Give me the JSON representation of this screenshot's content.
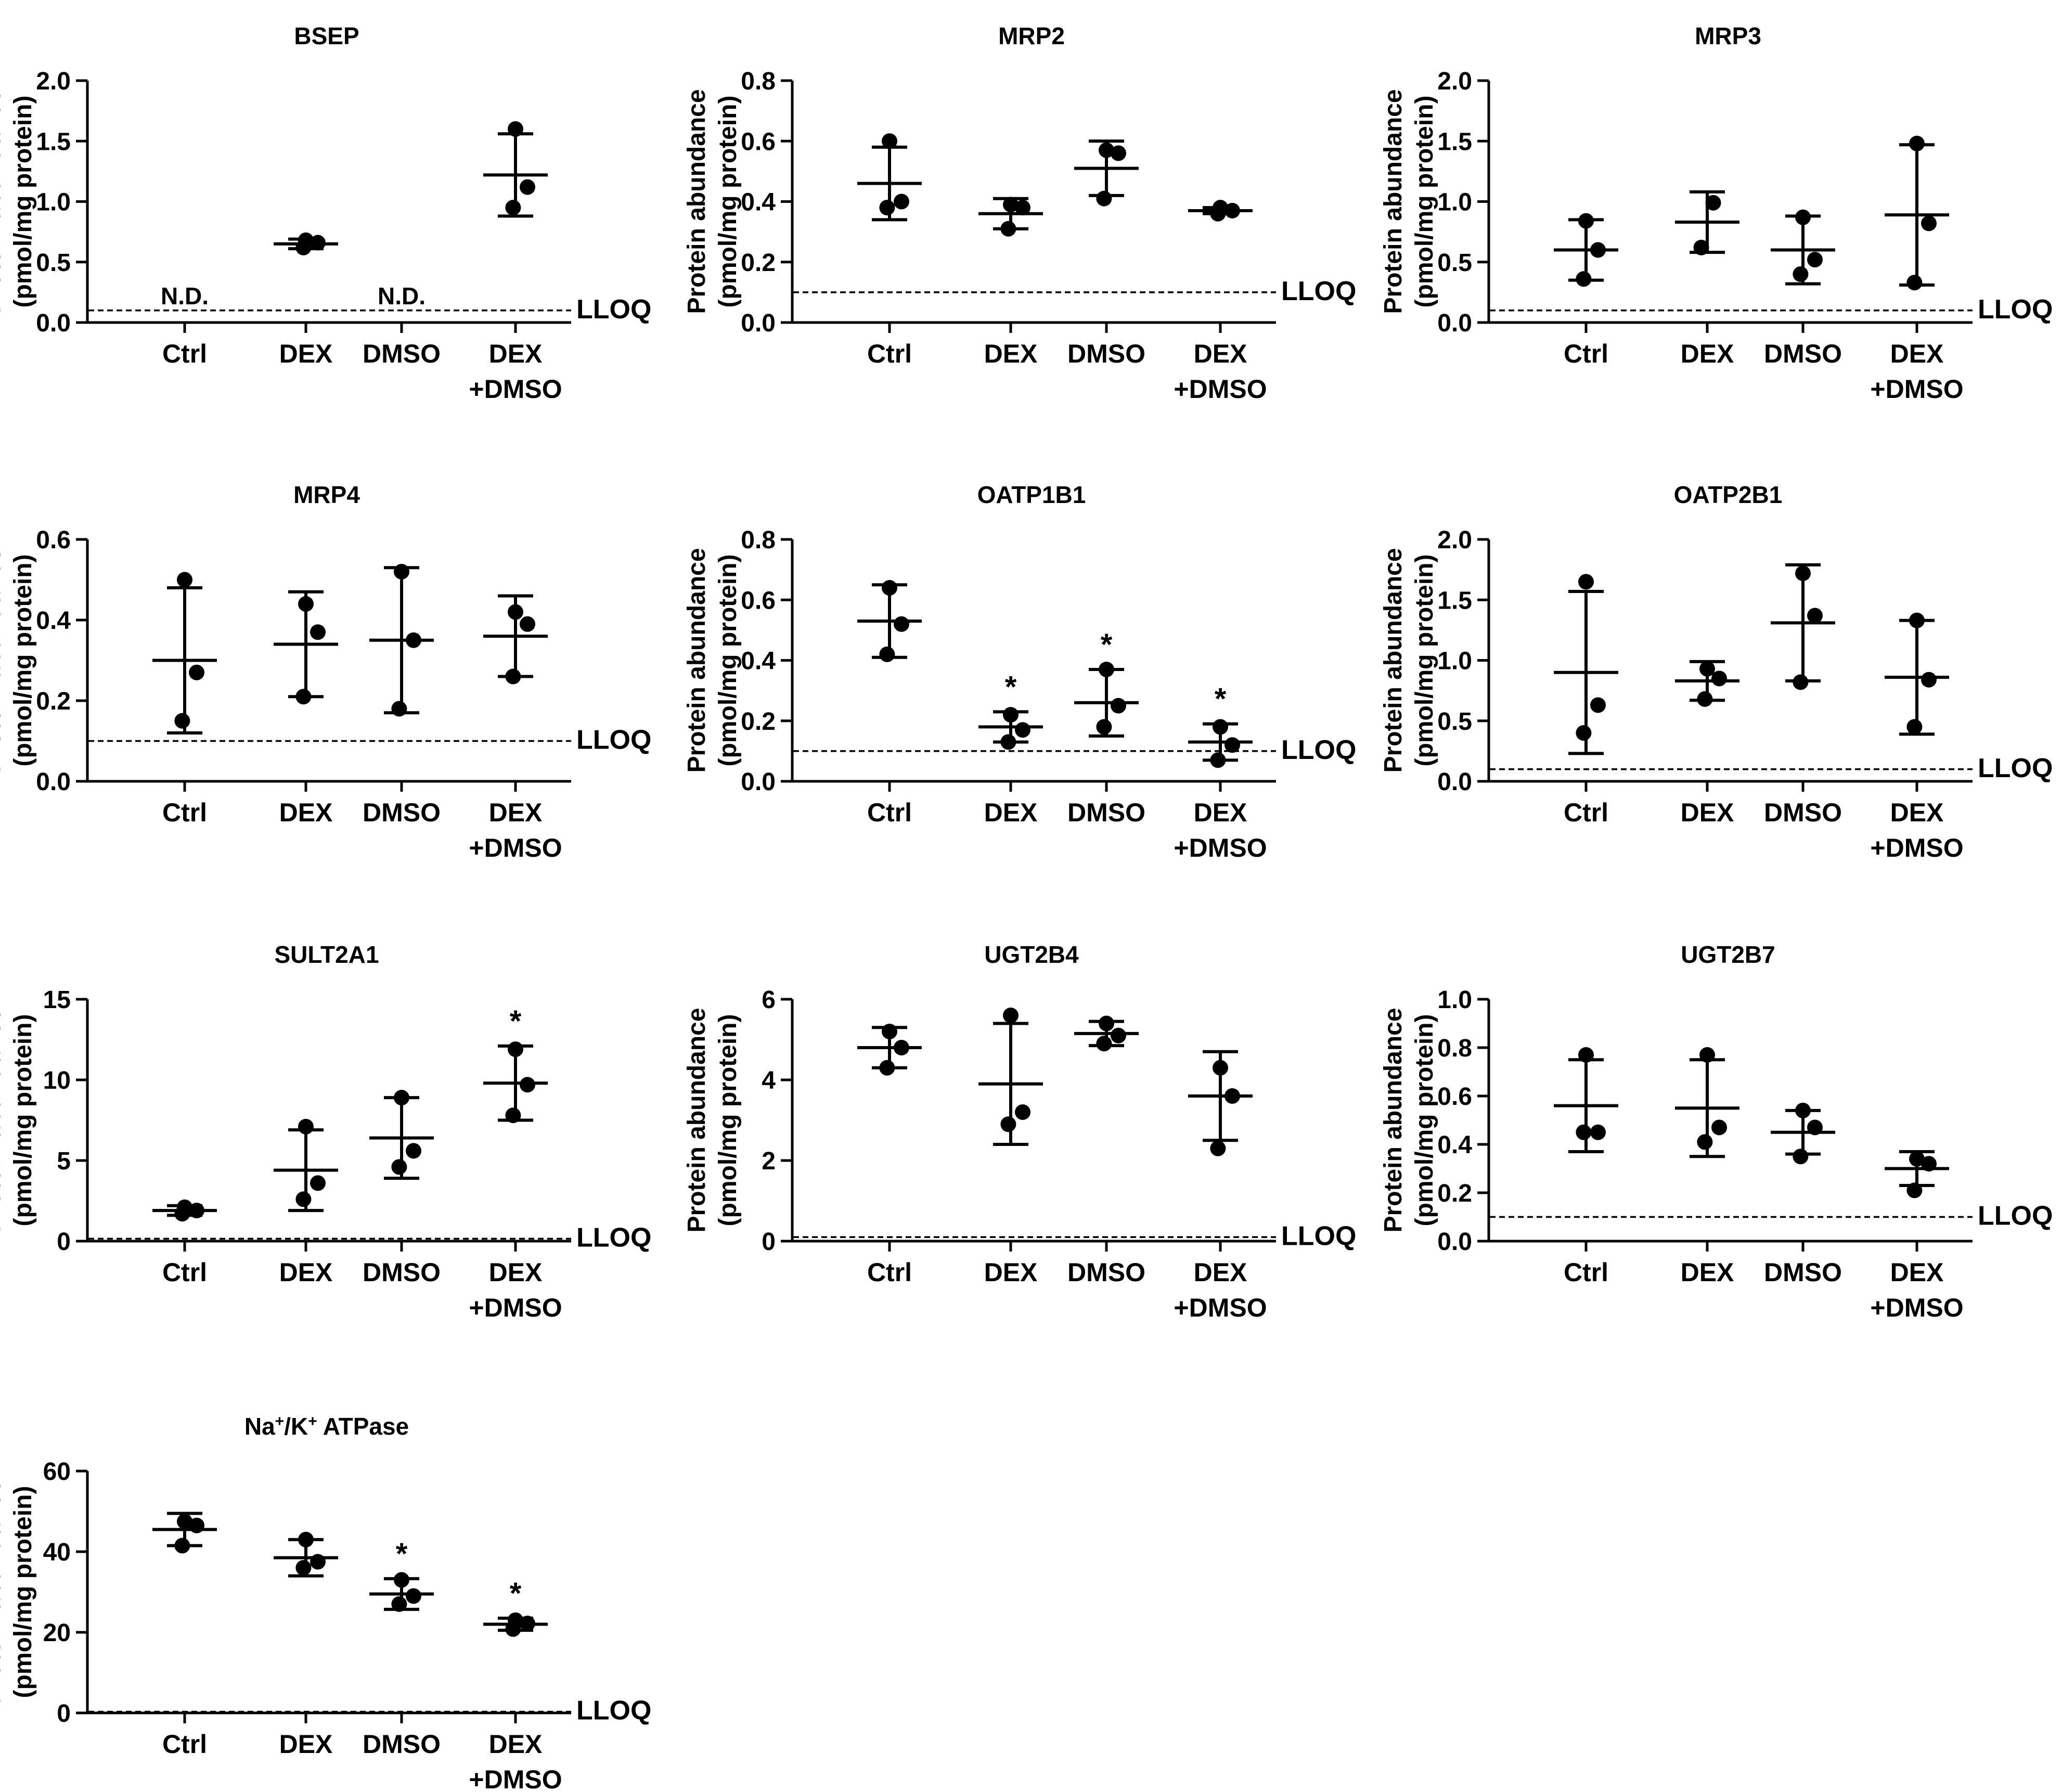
{
  "shared": {
    "ylabel_line1": "Protein abundance",
    "ylabel_line2": "(pmol/mg protein)",
    "lloq_label": "LLOQ",
    "nd_label": "N.D.",
    "sig_marker": "*",
    "xticks": [
      {
        "line1": "Ctrl",
        "line2": ""
      },
      {
        "line1": "DEX",
        "line2": ""
      },
      {
        "line1": "DMSO",
        "line2": ""
      },
      {
        "line1": "DEX",
        "line2": "+DMSO"
      }
    ]
  },
  "chart_data": [
    {
      "type": "scatter",
      "title": "BSEP",
      "title_sup": [],
      "ylim": [
        0,
        2.0
      ],
      "yticks": [
        "0.0",
        "0.5",
        "1.0",
        "1.5",
        "2.0"
      ],
      "lloq": 0.1,
      "groups": [
        {
          "name": "Ctrl",
          "nd": true
        },
        {
          "name": "DEX",
          "mean": 0.65,
          "sd": 0.04,
          "points": [
            0.62,
            0.66,
            0.68
          ],
          "sig": false
        },
        {
          "name": "DMSO",
          "nd": true
        },
        {
          "name": "DEX+DMSO",
          "mean": 1.22,
          "sd": 0.34,
          "points": [
            0.95,
            1.12,
            1.6
          ],
          "sig": false
        }
      ]
    },
    {
      "type": "scatter",
      "title": "MRP2",
      "title_sup": [],
      "ylim": [
        0,
        0.8
      ],
      "yticks": [
        "0.0",
        "0.2",
        "0.4",
        "0.6",
        "0.8"
      ],
      "lloq": 0.1,
      "groups": [
        {
          "name": "Ctrl",
          "mean": 0.46,
          "sd": 0.12,
          "points": [
            0.38,
            0.4,
            0.6
          ],
          "sig": false
        },
        {
          "name": "DEX",
          "mean": 0.36,
          "sd": 0.05,
          "points": [
            0.31,
            0.38,
            0.39
          ],
          "sig": false
        },
        {
          "name": "DMSO",
          "mean": 0.51,
          "sd": 0.09,
          "points": [
            0.41,
            0.56,
            0.57
          ],
          "sig": false
        },
        {
          "name": "DEX+DMSO",
          "mean": 0.37,
          "sd": 0.01,
          "points": [
            0.36,
            0.37,
            0.38
          ],
          "sig": false
        }
      ]
    },
    {
      "type": "scatter",
      "title": "MRP3",
      "title_sup": [],
      "ylim": [
        0,
        2.0
      ],
      "yticks": [
        "0.0",
        "0.5",
        "1.0",
        "1.5",
        "2.0"
      ],
      "lloq": 0.1,
      "groups": [
        {
          "name": "Ctrl",
          "mean": 0.6,
          "sd": 0.25,
          "points": [
            0.36,
            0.6,
            0.84
          ],
          "sig": false
        },
        {
          "name": "DEX",
          "mean": 0.83,
          "sd": 0.25,
          "points": [
            0.62,
            0.99
          ],
          "sig": false
        },
        {
          "name": "DMSO",
          "mean": 0.6,
          "sd": 0.28,
          "points": [
            0.4,
            0.52,
            0.87
          ],
          "sig": false
        },
        {
          "name": "DEX+DMSO",
          "mean": 0.89,
          "sd": 0.58,
          "points": [
            0.33,
            0.82,
            1.48
          ],
          "sig": false
        }
      ]
    },
    {
      "type": "scatter",
      "title": "MRP4",
      "title_sup": [],
      "ylim": [
        0,
        0.6
      ],
      "yticks": [
        "0.0",
        "0.2",
        "0.4",
        "0.6"
      ],
      "lloq": 0.1,
      "groups": [
        {
          "name": "Ctrl",
          "mean": 0.3,
          "sd": 0.18,
          "points": [
            0.15,
            0.27,
            0.5
          ],
          "sig": false
        },
        {
          "name": "DEX",
          "mean": 0.34,
          "sd": 0.13,
          "points": [
            0.21,
            0.37,
            0.44
          ],
          "sig": false
        },
        {
          "name": "DMSO",
          "mean": 0.35,
          "sd": 0.18,
          "points": [
            0.18,
            0.35,
            0.52
          ],
          "sig": false
        },
        {
          "name": "DEX+DMSO",
          "mean": 0.36,
          "sd": 0.1,
          "points": [
            0.26,
            0.39,
            0.42
          ],
          "sig": false
        }
      ]
    },
    {
      "type": "scatter",
      "title": "OATP1B1",
      "title_sup": [],
      "ylim": [
        0,
        0.8
      ],
      "yticks": [
        "0.0",
        "0.2",
        "0.4",
        "0.6",
        "0.8"
      ],
      "lloq": 0.1,
      "groups": [
        {
          "name": "Ctrl",
          "mean": 0.53,
          "sd": 0.12,
          "points": [
            0.42,
            0.52,
            0.64
          ],
          "sig": false
        },
        {
          "name": "DEX",
          "mean": 0.18,
          "sd": 0.05,
          "points": [
            0.13,
            0.17,
            0.22
          ],
          "sig": true
        },
        {
          "name": "DMSO",
          "mean": 0.26,
          "sd": 0.11,
          "points": [
            0.18,
            0.25,
            0.37
          ],
          "sig": true
        },
        {
          "name": "DEX+DMSO",
          "mean": 0.13,
          "sd": 0.06,
          "points": [
            0.07,
            0.12,
            0.18
          ],
          "sig": true
        }
      ]
    },
    {
      "type": "scatter",
      "title": "OATP2B1",
      "title_sup": [],
      "ylim": [
        0,
        2.0
      ],
      "yticks": [
        "0.0",
        "0.5",
        "1.0",
        "1.5",
        "2.0"
      ],
      "lloq": 0.1,
      "groups": [
        {
          "name": "Ctrl",
          "mean": 0.9,
          "sd": 0.67,
          "points": [
            0.4,
            0.63,
            1.65
          ],
          "sig": false
        },
        {
          "name": "DEX",
          "mean": 0.83,
          "sd": 0.16,
          "points": [
            0.68,
            0.85,
            0.93
          ],
          "sig": false
        },
        {
          "name": "DMSO",
          "mean": 1.31,
          "sd": 0.48,
          "points": [
            0.82,
            1.37,
            1.72
          ],
          "sig": false
        },
        {
          "name": "DEX+DMSO",
          "mean": 0.86,
          "sd": 0.47,
          "points": [
            0.45,
            0.84,
            1.33
          ],
          "sig": false
        }
      ]
    },
    {
      "type": "scatter",
      "title": "SULT2A1",
      "title_sup": [],
      "ylim": [
        0,
        15
      ],
      "yticks": [
        "0",
        "5",
        "10",
        "15"
      ],
      "lloq": 0.15,
      "groups": [
        {
          "name": "Ctrl",
          "mean": 1.9,
          "sd": 0.3,
          "points": [
            1.7,
            1.9,
            2.1
          ],
          "sig": false
        },
        {
          "name": "DEX",
          "mean": 4.4,
          "sd": 2.5,
          "points": [
            2.6,
            3.6,
            7.1
          ],
          "sig": false
        },
        {
          "name": "DMSO",
          "mean": 6.4,
          "sd": 2.5,
          "points": [
            4.6,
            5.6,
            8.9
          ],
          "sig": false
        },
        {
          "name": "DEX+DMSO",
          "mean": 9.8,
          "sd": 2.3,
          "points": [
            7.8,
            9.7,
            11.9
          ],
          "sig": true
        }
      ]
    },
    {
      "type": "scatter",
      "title": "UGT2B4",
      "title_sup": [],
      "ylim": [
        0,
        6
      ],
      "yticks": [
        "0",
        "2",
        "4",
        "6"
      ],
      "lloq": 0.1,
      "groups": [
        {
          "name": "Ctrl",
          "mean": 4.8,
          "sd": 0.5,
          "points": [
            4.3,
            4.8,
            5.2
          ],
          "sig": false
        },
        {
          "name": "DEX",
          "mean": 3.9,
          "sd": 1.5,
          "points": [
            2.9,
            3.2,
            5.6
          ],
          "sig": false
        },
        {
          "name": "DMSO",
          "mean": 5.15,
          "sd": 0.3,
          "points": [
            4.9,
            5.1,
            5.4
          ],
          "sig": false
        },
        {
          "name": "DEX+DMSO",
          "mean": 3.6,
          "sd": 1.1,
          "points": [
            2.3,
            3.6,
            4.3
          ],
          "sig": false
        }
      ]
    },
    {
      "type": "scatter",
      "title": "UGT2B7",
      "title_sup": [],
      "ylim": [
        0,
        1.0
      ],
      "yticks": [
        "0.0",
        "0.2",
        "0.4",
        "0.6",
        "0.8",
        "1.0"
      ],
      "lloq": 0.1,
      "groups": [
        {
          "name": "Ctrl",
          "mean": 0.56,
          "sd": 0.19,
          "points": [
            0.45,
            0.45,
            0.77
          ],
          "sig": false
        },
        {
          "name": "DEX",
          "mean": 0.55,
          "sd": 0.2,
          "points": [
            0.41,
            0.47,
            0.77
          ],
          "sig": false
        },
        {
          "name": "DMSO",
          "mean": 0.45,
          "sd": 0.09,
          "points": [
            0.35,
            0.47,
            0.54
          ],
          "sig": false
        },
        {
          "name": "DEX+DMSO",
          "mean": 0.3,
          "sd": 0.07,
          "points": [
            0.21,
            0.32,
            0.34
          ],
          "sig": false
        }
      ]
    },
    {
      "type": "scatter",
      "title": "Na/K ATPase",
      "title_parts": [
        {
          "text": "Na",
          "sup": false
        },
        {
          "text": "+",
          "sup": true
        },
        {
          "text": "/K",
          "sup": false
        },
        {
          "text": "+",
          "sup": true
        },
        {
          "text": " ATPase",
          "sup": false
        }
      ],
      "ylim": [
        0,
        60
      ],
      "yticks": [
        "0",
        "20",
        "40",
        "60"
      ],
      "lloq": 0.3,
      "groups": [
        {
          "name": "Ctrl",
          "mean": 45.5,
          "sd": 4.0,
          "points": [
            41.5,
            46.5,
            47.5
          ],
          "sig": false
        },
        {
          "name": "DEX",
          "mean": 38.5,
          "sd": 4.5,
          "points": [
            36.0,
            37.5,
            43.0
          ],
          "sig": false
        },
        {
          "name": "DMSO",
          "mean": 29.5,
          "sd": 3.8,
          "points": [
            27.0,
            29.0,
            33.0
          ],
          "sig": true
        },
        {
          "name": "DEX+DMSO",
          "mean": 22.0,
          "sd": 1.5,
          "points": [
            20.8,
            22.2,
            23.0
          ],
          "sig": true
        }
      ]
    }
  ]
}
